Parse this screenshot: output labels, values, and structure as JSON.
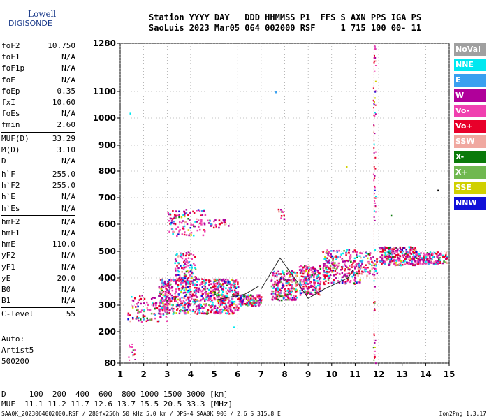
{
  "logo": {
    "line1": "Lowell",
    "line2": "DIGISONDE"
  },
  "header": {
    "line1": "Station YYYY DAY   DDD HHMMSS P1  FFS S AXN PPS IGA PS",
    "line2": "SaoLuis 2023 Mar05 064 002000 RSF     1 715 100 00- 11"
  },
  "params": {
    "g1": [
      {
        "k": "foF2",
        "v": "10.750"
      },
      {
        "k": "foF1",
        "v": "N/A"
      },
      {
        "k": "foF1p",
        "v": "N/A"
      },
      {
        "k": "foE",
        "v": "N/A"
      },
      {
        "k": "foEp",
        "v": "0.35"
      },
      {
        "k": "fxI",
        "v": "10.60"
      },
      {
        "k": "foEs",
        "v": "N/A"
      },
      {
        "k": "fmin",
        "v": "2.60"
      }
    ],
    "g2": [
      {
        "k": "MUF(D)",
        "v": "33.29"
      },
      {
        "k": "M(D)",
        "v": "3.10"
      },
      {
        "k": "D",
        "v": "N/A"
      }
    ],
    "g3": [
      {
        "k": "h`F",
        "v": "255.0"
      },
      {
        "k": "h`F2",
        "v": "255.0"
      },
      {
        "k": "h`E",
        "v": "N/A"
      },
      {
        "k": "h`Es",
        "v": "N/A"
      }
    ],
    "g4": [
      {
        "k": "hmF2",
        "v": "N/A"
      },
      {
        "k": "hmF1",
        "v": "N/A"
      },
      {
        "k": "hmE",
        "v": "110.0"
      },
      {
        "k": "yF2",
        "v": "N/A"
      },
      {
        "k": "yF1",
        "v": "N/A"
      },
      {
        "k": "yE",
        "v": "20.0"
      },
      {
        "k": "B0",
        "v": "N/A"
      },
      {
        "k": "B1",
        "v": "N/A"
      }
    ],
    "g5": [
      {
        "k": "C-level",
        "v": "55"
      }
    ]
  },
  "auto": {
    "l1": "Auto:",
    "l2": "Artist5",
    "l3": "500200"
  },
  "legend": [
    {
      "label": "NoVal",
      "color": "#a0a0a0"
    },
    {
      "label": "NNE",
      "color": "#00e8f0"
    },
    {
      "label": "E",
      "color": "#3aa0f0"
    },
    {
      "label": "W",
      "color": "#b0009a"
    },
    {
      "label": "Vo-",
      "color": "#f040b0"
    },
    {
      "label": "Vo+",
      "color": "#e8002a"
    },
    {
      "label": "SSW",
      "color": "#f0a8a0"
    },
    {
      "label": "X-",
      "color": "#0a7a0a"
    },
    {
      "label": "X+",
      "color": "#70b850"
    },
    {
      "label": "SSE",
      "color": "#d0d000"
    },
    {
      "label": "NNW",
      "color": "#1010d8"
    }
  ],
  "bottom": {
    "line1": "D     100  200  400  600  800 1000 1500 3000 [km]",
    "line2": "MUF  11.1 11.2 11.7 12.6 13.7 15.5 20.5 33.3 [MHz]"
  },
  "footer": "SAA0K_2023064002000.RSF / 280fx256h 50 kHz 5.0 km / DPS-4 SAA0K 903 / 2.6 S 315.8 E",
  "version": "Ion2Png 1.3.17",
  "chart_data": {
    "type": "scatter",
    "x_ticks": [
      1,
      2,
      3,
      4,
      5,
      6,
      7,
      8,
      9,
      10,
      11,
      12,
      13,
      14,
      15
    ],
    "y_ticks": [
      80,
      200,
      300,
      400,
      500,
      600,
      700,
      800,
      900,
      1000,
      1100,
      1280
    ],
    "xlim": [
      1,
      15
    ],
    "ylim": [
      80,
      1280
    ],
    "y_scale": "ionogram (non-linear)",
    "grid": true,
    "legend_position": "right",
    "marker_line": {
      "x": 11.8
    },
    "trace": [
      [
        7.0,
        360
      ],
      [
        7.8,
        475
      ],
      [
        8.5,
        390
      ],
      [
        9.0,
        325
      ],
      [
        9.7,
        360
      ],
      [
        10.7,
        400
      ],
      [
        10.9,
        430
      ]
    ],
    "trace_left": [
      [
        5.1,
        320
      ],
      [
        6.3,
        340
      ],
      [
        6.9,
        370
      ]
    ],
    "clusters": [
      {
        "x0": 1.3,
        "x1": 3.0,
        "y0": 240,
        "y1": 340,
        "n": 120
      },
      {
        "x0": 2.6,
        "x1": 6.0,
        "y0": 270,
        "y1": 400,
        "n": 800
      },
      {
        "x0": 3.3,
        "x1": 4.2,
        "y0": 380,
        "y1": 500,
        "n": 120
      },
      {
        "x0": 6.0,
        "x1": 7.0,
        "y0": 300,
        "y1": 340,
        "n": 140
      },
      {
        "x0": 7.4,
        "x1": 8.5,
        "y0": 320,
        "y1": 430,
        "n": 220
      },
      {
        "x0": 8.6,
        "x1": 9.5,
        "y0": 340,
        "y1": 450,
        "n": 200
      },
      {
        "x0": 9.6,
        "x1": 11.2,
        "y0": 380,
        "y1": 510,
        "n": 240
      },
      {
        "x0": 11.2,
        "x1": 11.9,
        "y0": 410,
        "y1": 500,
        "n": 60
      },
      {
        "x0": 12.0,
        "x1": 13.6,
        "y0": 450,
        "y1": 520,
        "n": 260
      },
      {
        "x0": 13.6,
        "x1": 14.9,
        "y0": 455,
        "y1": 500,
        "n": 150
      },
      {
        "x0": 3.0,
        "x1": 4.6,
        "y0": 560,
        "y1": 660,
        "n": 110
      },
      {
        "x0": 4.6,
        "x1": 5.6,
        "y0": 590,
        "y1": 620,
        "n": 25
      },
      {
        "x0": 7.7,
        "x1": 8.0,
        "y0": 620,
        "y1": 660,
        "n": 10
      }
    ],
    "sparse": [
      {
        "x0": 1.3,
        "x1": 1.7,
        "y0": 80,
        "y1": 160,
        "n": 14
      },
      {
        "x0": 11.75,
        "x1": 11.85,
        "y0": 80,
        "y1": 1280,
        "n": 90
      }
    ],
    "isolated": [
      [
        1.4,
        1020,
        "#00e8f0"
      ],
      [
        7.6,
        1100,
        "#3aa0f0"
      ],
      [
        14.5,
        730,
        "#000000"
      ],
      [
        12.5,
        635,
        "#0a7a0a"
      ],
      [
        5.8,
        220,
        "#00e8f0"
      ],
      [
        10.6,
        820,
        "#d0d000"
      ]
    ]
  }
}
